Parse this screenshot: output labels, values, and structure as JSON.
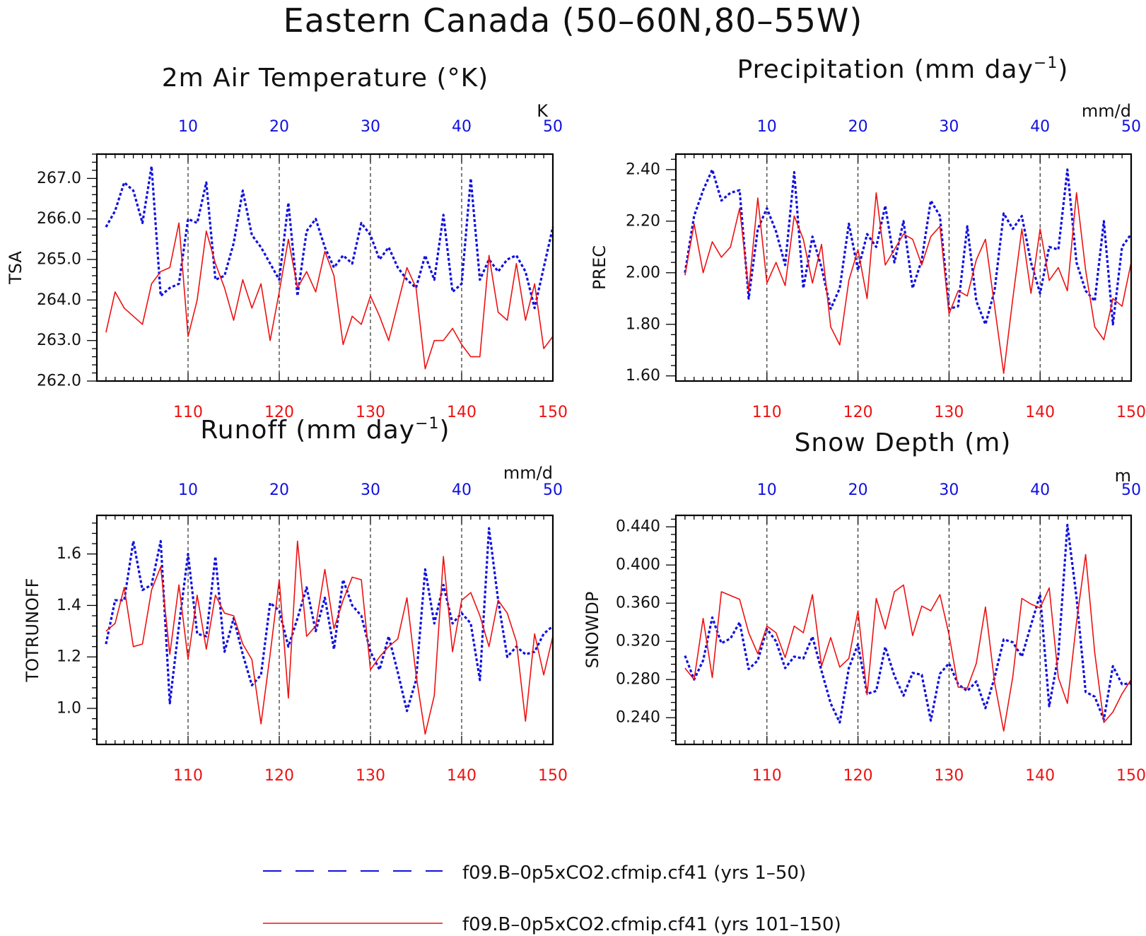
{
  "title": "Eastern Canada (50–60N,80–55W)",
  "colors": {
    "series_a": "#1010e0",
    "series_b": "#ee1111",
    "axis": "#000000"
  },
  "legend": {
    "items": [
      {
        "label": "f09.B–0p5xCO2.cfmip.cf41 (yrs 1–50)",
        "style": "dashed",
        "color": "#1010e0"
      },
      {
        "label": "f09.B–0p5xCO2.cfmip.cf41 (yrs 101–150)",
        "style": "solid",
        "color": "#ee1111"
      }
    ]
  },
  "chart_data": [
    {
      "type": "line",
      "title": "2m Air Temperature (°K)",
      "title_sup": "",
      "title_tail": "",
      "ylabel": "TSA",
      "unit": "K",
      "ylim": [
        262.0,
        267.6
      ],
      "yticks": [
        "262.0",
        "263.0",
        "264.0",
        "265.0",
        "266.0",
        "267.0"
      ],
      "ytick_values": [
        262.0,
        263.0,
        264.0,
        265.0,
        266.0,
        267.0
      ],
      "top_xlim": [
        0,
        50
      ],
      "top_xticks": [
        "10",
        "20",
        "30",
        "40",
        "50"
      ],
      "bottom_xlim": [
        100,
        150
      ],
      "bottom_xticks": [
        "110",
        "120",
        "130",
        "140",
        "150"
      ],
      "series": [
        {
          "name": "f09.B–0p5xCO2.cfmip.cf41 (yrs 1–50)",
          "axis": "top",
          "x_start": 1,
          "values": [
            265.8,
            266.2,
            266.9,
            266.7,
            265.9,
            267.3,
            264.1,
            264.3,
            264.4,
            266.0,
            265.9,
            266.9,
            264.5,
            264.6,
            265.4,
            266.7,
            265.6,
            265.3,
            264.9,
            264.5,
            266.4,
            264.1,
            265.7,
            266.0,
            265.3,
            264.8,
            265.1,
            264.9,
            265.9,
            265.6,
            265.0,
            265.3,
            264.8,
            264.5,
            264.3,
            265.1,
            264.5,
            266.1,
            264.2,
            264.4,
            267.0,
            264.5,
            265.0,
            264.7,
            265.0,
            265.1,
            264.7,
            263.8,
            264.8,
            265.8
          ]
        },
        {
          "name": "f09.B–0p5xCO2.cfmip.cf41 (yrs 101–150)",
          "axis": "bottom",
          "x_start": 101,
          "values": [
            263.2,
            264.2,
            263.8,
            263.6,
            263.4,
            264.4,
            264.7,
            264.8,
            265.9,
            263.1,
            264.0,
            265.7,
            264.9,
            264.3,
            263.5,
            264.5,
            263.8,
            264.4,
            263.0,
            264.2,
            265.5,
            264.3,
            264.7,
            264.2,
            265.2,
            264.6,
            262.9,
            263.6,
            263.4,
            264.1,
            263.6,
            263.0,
            263.9,
            264.8,
            264.3,
            262.3,
            263.0,
            263.0,
            263.3,
            262.9,
            262.6,
            262.6,
            265.1,
            263.7,
            263.5,
            264.9,
            263.5,
            264.4,
            262.8,
            263.1
          ]
        }
      ]
    },
    {
      "type": "line",
      "title": "Precipitation (mm day",
      "title_sup": "−1",
      "title_tail": ")",
      "ylabel": "PREC",
      "unit": "mm/d",
      "ylim": [
        1.58,
        2.46
      ],
      "yticks": [
        "1.60",
        "1.80",
        "2.00",
        "2.20",
        "2.40"
      ],
      "ytick_values": [
        1.6,
        1.8,
        2.0,
        2.2,
        2.4
      ],
      "top_xlim": [
        0,
        50
      ],
      "top_xticks": [
        "10",
        "20",
        "30",
        "40",
        "50"
      ],
      "bottom_xlim": [
        100,
        150
      ],
      "bottom_xticks": [
        "110",
        "120",
        "130",
        "140",
        "150"
      ],
      "series": [
        {
          "name": "f09.B–0p5xCO2.cfmip.cf41 (yrs 1–50)",
          "axis": "top",
          "x_start": 1,
          "values": [
            2.0,
            2.22,
            2.32,
            2.4,
            2.28,
            2.31,
            2.32,
            1.9,
            2.17,
            2.25,
            2.16,
            2.03,
            2.39,
            1.94,
            2.14,
            2.02,
            1.86,
            1.94,
            2.19,
            2.01,
            2.15,
            2.1,
            2.26,
            2.04,
            2.2,
            1.94,
            2.05,
            2.28,
            2.22,
            1.86,
            1.87,
            2.18,
            1.89,
            1.8,
            1.93,
            2.23,
            2.17,
            2.22,
            2.04,
            1.92,
            2.1,
            2.09,
            2.4,
            2.04,
            1.93,
            1.89,
            2.2,
            1.8,
            2.1,
            2.15
          ]
        },
        {
          "name": "f09.B–0p5xCO2.cfmip.cf41 (yrs 101–150)",
          "axis": "bottom",
          "x_start": 101,
          "values": [
            1.99,
            2.19,
            2.0,
            2.12,
            2.06,
            2.1,
            2.25,
            1.93,
            2.29,
            1.96,
            2.04,
            1.95,
            2.22,
            2.13,
            1.96,
            2.11,
            1.79,
            1.72,
            1.97,
            2.09,
            1.9,
            2.31,
            2.03,
            2.09,
            2.15,
            2.13,
            2.03,
            2.14,
            2.18,
            1.84,
            1.93,
            1.91,
            2.05,
            2.13,
            1.87,
            1.61,
            1.9,
            2.17,
            1.92,
            2.17,
            1.97,
            2.02,
            1.93,
            2.31,
            2.01,
            1.79,
            1.74,
            1.9,
            1.87,
            2.04
          ]
        }
      ]
    },
    {
      "type": "line",
      "title": "Runoff (mm day",
      "title_sup": "−1",
      "title_tail": ")",
      "ylabel": "TOTRUNOFF",
      "unit": "mm/d",
      "ylim": [
        0.86,
        1.75
      ],
      "yticks": [
        "1.0",
        "1.2",
        "1.4",
        "1.6"
      ],
      "ytick_values": [
        1.0,
        1.2,
        1.4,
        1.6
      ],
      "top_xlim": [
        0,
        50
      ],
      "top_xticks": [
        "10",
        "20",
        "30",
        "40",
        "50"
      ],
      "bottom_xlim": [
        100,
        150
      ],
      "bottom_xticks": [
        "110",
        "120",
        "130",
        "140",
        "150"
      ],
      "series": [
        {
          "name": "f09.B–0p5xCO2.cfmip.cf41 (yrs 1–50)",
          "axis": "top",
          "x_start": 1,
          "values": [
            1.25,
            1.42,
            1.42,
            1.65,
            1.46,
            1.48,
            1.65,
            1.02,
            1.32,
            1.6,
            1.29,
            1.28,
            1.59,
            1.22,
            1.35,
            1.21,
            1.09,
            1.13,
            1.41,
            1.38,
            1.24,
            1.35,
            1.47,
            1.3,
            1.43,
            1.23,
            1.5,
            1.4,
            1.36,
            1.22,
            1.15,
            1.28,
            1.14,
            0.99,
            1.11,
            1.54,
            1.33,
            1.48,
            1.33,
            1.37,
            1.33,
            1.11,
            1.7,
            1.42,
            1.2,
            1.24,
            1.21,
            1.22,
            1.29,
            1.32
          ]
        },
        {
          "name": "f09.B–0p5xCO2.cfmip.cf41 (yrs 101–150)",
          "axis": "bottom",
          "x_start": 101,
          "values": [
            1.3,
            1.33,
            1.47,
            1.24,
            1.25,
            1.46,
            1.55,
            1.21,
            1.48,
            1.19,
            1.44,
            1.23,
            1.44,
            1.37,
            1.36,
            1.25,
            1.19,
            0.94,
            1.21,
            1.5,
            1.04,
            1.65,
            1.28,
            1.32,
            1.54,
            1.31,
            1.42,
            1.51,
            1.5,
            1.15,
            1.2,
            1.24,
            1.27,
            1.43,
            1.13,
            0.9,
            1.05,
            1.59,
            1.22,
            1.42,
            1.45,
            1.36,
            1.24,
            1.42,
            1.37,
            1.26,
            0.95,
            1.29,
            1.13,
            1.28
          ]
        }
      ]
    },
    {
      "type": "line",
      "title": "Snow Depth (m)",
      "title_sup": "",
      "title_tail": "",
      "ylabel": "SNOWDP",
      "unit": "m",
      "ylim": [
        0.212,
        0.452
      ],
      "yticks": [
        "0.240",
        "0.280",
        "0.320",
        "0.360",
        "0.400",
        "0.440"
      ],
      "ytick_values": [
        0.24,
        0.28,
        0.32,
        0.36,
        0.4,
        0.44
      ],
      "top_xlim": [
        0,
        50
      ],
      "top_xticks": [
        "10",
        "20",
        "30",
        "40",
        "50"
      ],
      "bottom_xlim": [
        100,
        150
      ],
      "bottom_xticks": [
        "110",
        "120",
        "130",
        "140",
        "150"
      ],
      "series": [
        {
          "name": "f09.B–0p5xCO2.cfmip.cf41 (yrs 1–50)",
          "axis": "top",
          "x_start": 1,
          "values": [
            0.305,
            0.28,
            0.3,
            0.345,
            0.318,
            0.323,
            0.34,
            0.291,
            0.3,
            0.333,
            0.32,
            0.292,
            0.304,
            0.302,
            0.325,
            0.289,
            0.255,
            0.235,
            0.292,
            0.317,
            0.265,
            0.268,
            0.314,
            0.284,
            0.263,
            0.287,
            0.285,
            0.237,
            0.286,
            0.297,
            0.275,
            0.268,
            0.278,
            0.25,
            0.282,
            0.322,
            0.319,
            0.304,
            0.337,
            0.369,
            0.252,
            0.305,
            0.442,
            0.366,
            0.267,
            0.262,
            0.238,
            0.294,
            0.275,
            0.276
          ]
        },
        {
          "name": "f09.B–0p5xCO2.cfmip.cf41 (yrs 101–150)",
          "axis": "bottom",
          "x_start": 101,
          "values": [
            0.292,
            0.28,
            0.344,
            0.282,
            0.372,
            0.368,
            0.364,
            0.329,
            0.307,
            0.336,
            0.329,
            0.303,
            0.336,
            0.329,
            0.369,
            0.294,
            0.324,
            0.293,
            0.302,
            0.352,
            0.264,
            0.365,
            0.333,
            0.372,
            0.379,
            0.326,
            0.357,
            0.352,
            0.369,
            0.327,
            0.272,
            0.271,
            0.297,
            0.356,
            0.277,
            0.226,
            0.283,
            0.365,
            0.359,
            0.355,
            0.376,
            0.282,
            0.255,
            0.34,
            0.411,
            0.308,
            0.235,
            0.246,
            0.265,
            0.28
          ]
        }
      ]
    }
  ]
}
